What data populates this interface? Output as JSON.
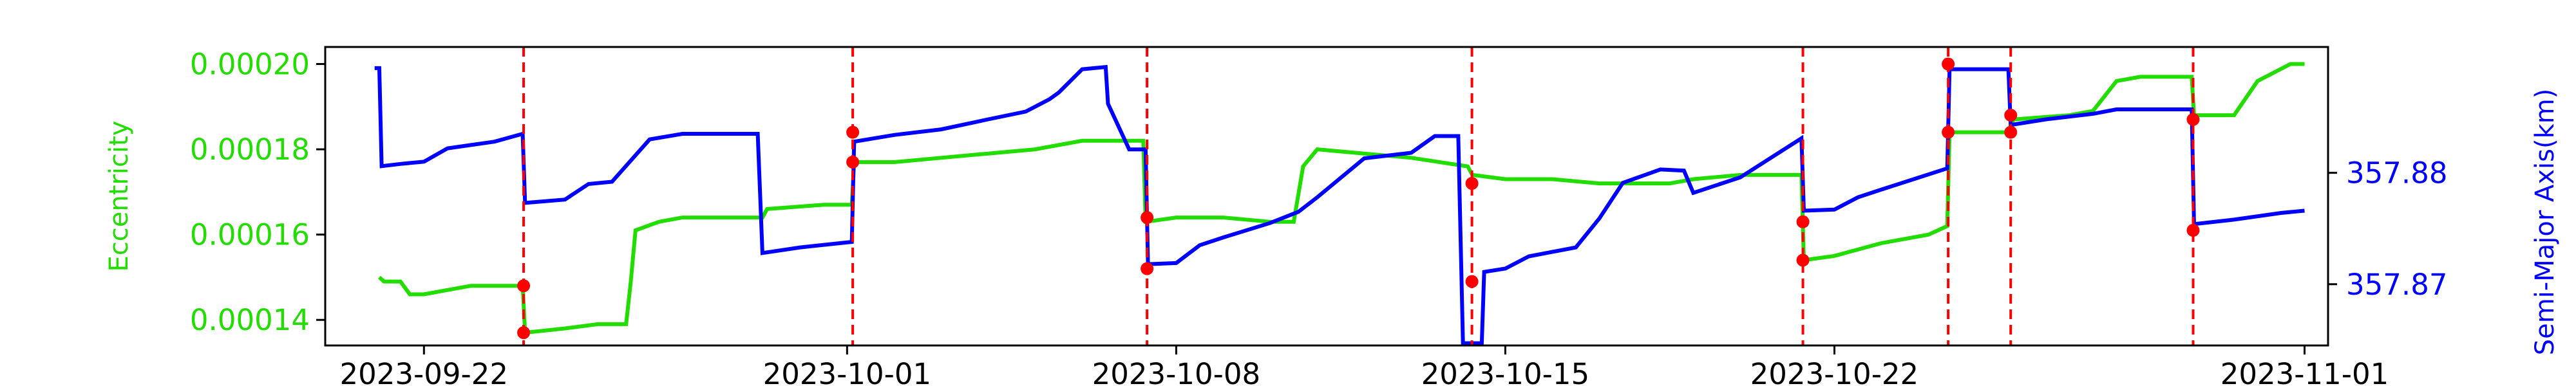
{
  "chart_data": {
    "type": "line",
    "title": "",
    "xlabel": "",
    "ylabel_left": "Eccentricity",
    "ylabel_right": "Semi-Major Axis(km)",
    "colors": {
      "eccentricity": "#22dd00",
      "semi_major_axis": "#0000ff",
      "event_line": "#ff0000",
      "event_marker": "#ff0000",
      "axis": "#000000"
    },
    "x_tick_labels": [
      "2023-09-22",
      "2023-10-01",
      "2023-10-08",
      "2023-10-15",
      "2023-10-22",
      "2023-11-01"
    ],
    "x_tick_days": [
      0,
      9,
      16,
      23,
      30,
      40
    ],
    "xlim_days": [
      -2.1,
      40.5
    ],
    "x_origin_date": "2023-09-22",
    "left_axis": {
      "label": "Eccentricity",
      "ylim": [
        0.000134,
        0.000204
      ],
      "tick_values": [
        0.00014,
        0.00016,
        0.00018,
        0.0002
      ],
      "tick_labels": [
        "0.00014",
        "0.00016",
        "0.00018",
        "0.00020"
      ]
    },
    "right_axis": {
      "label": "Semi-Major Axis(km)",
      "ylim": [
        357.8645,
        357.8913
      ],
      "tick_values": [
        357.87,
        357.88
      ],
      "tick_labels": [
        "357.87",
        "357.88"
      ]
    },
    "event_days": [
      2.12,
      9.12,
      15.38,
      22.29,
      29.33,
      32.42,
      33.75,
      37.63
    ],
    "series": [
      {
        "name": "Eccentricity",
        "axis": "left",
        "color": "#22dd00",
        "points": [
          [
            -0.95,
            0.00015
          ],
          [
            -0.85,
            0.000149
          ],
          [
            -0.7,
            0.000149
          ],
          [
            -0.5,
            0.000149
          ],
          [
            -0.3,
            0.000146
          ],
          [
            0.0,
            0.000146
          ],
          [
            0.5,
            0.000147
          ],
          [
            1.0,
            0.000148
          ],
          [
            1.5,
            0.000148
          ],
          [
            2.1,
            0.000148
          ],
          [
            2.15,
            0.000137
          ],
          [
            3.0,
            0.000138
          ],
          [
            3.7,
            0.000139
          ],
          [
            4.3,
            0.000139
          ],
          [
            4.4,
            0.000149
          ],
          [
            4.5,
            0.000161
          ],
          [
            5.0,
            0.000163
          ],
          [
            5.5,
            0.000164
          ],
          [
            6.5,
            0.000164
          ],
          [
            7.2,
            0.000164
          ],
          [
            7.3,
            0.000166
          ],
          [
            8.5,
            0.000167
          ],
          [
            9.1,
            0.000167
          ],
          [
            9.15,
            0.000177
          ],
          [
            10.0,
            0.000177
          ],
          [
            11.0,
            0.000178
          ],
          [
            12.0,
            0.000179
          ],
          [
            13.0,
            0.00018
          ],
          [
            14.0,
            0.000182
          ],
          [
            15.3,
            0.000182
          ],
          [
            15.35,
            0.000163
          ],
          [
            16.0,
            0.000164
          ],
          [
            17.0,
            0.000164
          ],
          [
            18.0,
            0.000163
          ],
          [
            18.5,
            0.000163
          ],
          [
            18.7,
            0.000176
          ],
          [
            19.0,
            0.00018
          ],
          [
            20.0,
            0.000179
          ],
          [
            21.0,
            0.000178
          ],
          [
            22.2,
            0.000176
          ],
          [
            22.3,
            0.000174
          ],
          [
            23.0,
            0.000173
          ],
          [
            24.0,
            0.000173
          ],
          [
            25.0,
            0.000172
          ],
          [
            26.5,
            0.000172
          ],
          [
            27.0,
            0.000173
          ],
          [
            28.0,
            0.000174
          ],
          [
            29.3,
            0.000174
          ],
          [
            29.35,
            0.000154
          ],
          [
            30.0,
            0.000155
          ],
          [
            31.0,
            0.000158
          ],
          [
            32.0,
            0.00016
          ],
          [
            32.4,
            0.000162
          ],
          [
            32.45,
            0.000184
          ],
          [
            33.0,
            0.000184
          ],
          [
            33.75,
            0.000184
          ],
          [
            33.8,
            0.000187
          ],
          [
            35.0,
            0.000188
          ],
          [
            35.5,
            0.000189
          ],
          [
            36.0,
            0.000196
          ],
          [
            36.5,
            0.000197
          ],
          [
            37.6,
            0.000197
          ],
          [
            37.65,
            0.000188
          ],
          [
            38.5,
            0.000188
          ],
          [
            39.0,
            0.000196
          ],
          [
            39.7,
            0.0002
          ],
          [
            40.0,
            0.0002
          ]
        ]
      },
      {
        "name": "Semi-Major Axis",
        "axis": "right",
        "color": "#0000ff",
        "points": [
          [
            -1.05,
            357.8894
          ],
          [
            -0.95,
            357.8894
          ],
          [
            -0.9,
            357.8806
          ],
          [
            -0.5,
            357.8808
          ],
          [
            0.0,
            357.881
          ],
          [
            0.5,
            357.8822
          ],
          [
            1.0,
            357.8825
          ],
          [
            1.5,
            357.8828
          ],
          [
            2.1,
            357.8835
          ],
          [
            2.15,
            357.8773
          ],
          [
            3.0,
            357.8776
          ],
          [
            3.5,
            357.879
          ],
          [
            4.0,
            357.8792
          ],
          [
            4.8,
            357.883
          ],
          [
            5.5,
            357.8835
          ],
          [
            6.5,
            357.8835
          ],
          [
            7.1,
            357.8835
          ],
          [
            7.2,
            357.8728
          ],
          [
            8.0,
            357.8733
          ],
          [
            9.1,
            357.8738
          ],
          [
            9.15,
            357.8828
          ],
          [
            10.0,
            357.8834
          ],
          [
            11.0,
            357.8839
          ],
          [
            12.0,
            357.8848
          ],
          [
            12.8,
            357.8855
          ],
          [
            13.3,
            357.8866
          ],
          [
            13.5,
            357.8872
          ],
          [
            14.0,
            357.8893
          ],
          [
            14.5,
            357.8895
          ],
          [
            14.55,
            357.8862
          ],
          [
            15.0,
            357.8821
          ],
          [
            15.35,
            357.8821
          ],
          [
            15.4,
            357.8718
          ],
          [
            16.0,
            357.8719
          ],
          [
            16.5,
            357.8735
          ],
          [
            17.0,
            357.8742
          ],
          [
            18.0,
            357.8755
          ],
          [
            18.6,
            357.8765
          ],
          [
            19.0,
            357.8778
          ],
          [
            20.0,
            357.8813
          ],
          [
            21.0,
            357.8818
          ],
          [
            21.5,
            357.8833
          ],
          [
            22.0,
            357.8833
          ],
          [
            22.1,
            357.8647
          ],
          [
            22.5,
            357.8647
          ],
          [
            22.55,
            357.8711
          ],
          [
            23.0,
            357.8714
          ],
          [
            23.5,
            357.8725
          ],
          [
            24.5,
            357.8733
          ],
          [
            25.0,
            357.8759
          ],
          [
            25.5,
            357.8791
          ],
          [
            26.3,
            357.8803
          ],
          [
            26.8,
            357.8802
          ],
          [
            27.0,
            357.8782
          ],
          [
            28.0,
            357.8796
          ],
          [
            29.3,
            357.8831
          ],
          [
            29.35,
            357.8766
          ],
          [
            30.0,
            357.8767
          ],
          [
            30.5,
            357.8778
          ],
          [
            31.0,
            357.8785
          ],
          [
            32.4,
            357.8804
          ],
          [
            32.45,
            357.8893
          ],
          [
            33.7,
            357.8893
          ],
          [
            33.75,
            357.8843
          ],
          [
            34.5,
            357.8848
          ],
          [
            35.5,
            357.8853
          ],
          [
            36.0,
            357.8857
          ],
          [
            37.6,
            357.8857
          ],
          [
            37.65,
            357.8754
          ],
          [
            38.5,
            357.8758
          ],
          [
            39.5,
            357.8764
          ],
          [
            40.0,
            357.8766
          ]
        ]
      }
    ],
    "markers": [
      {
        "day": 2.12,
        "axis": "left",
        "value": 0.000148
      },
      {
        "day": 2.12,
        "axis": "left",
        "value": 0.000137
      },
      {
        "day": 9.12,
        "axis": "left",
        "value": 0.000184
      },
      {
        "day": 9.12,
        "axis": "left",
        "value": 0.000177
      },
      {
        "day": 15.38,
        "axis": "left",
        "value": 0.000164
      },
      {
        "day": 15.38,
        "axis": "left",
        "value": 0.000152
      },
      {
        "day": 22.29,
        "axis": "left",
        "value": 0.000172
      },
      {
        "day": 22.29,
        "axis": "left",
        "value": 0.000149
      },
      {
        "day": 29.33,
        "axis": "left",
        "value": 0.000163
      },
      {
        "day": 29.33,
        "axis": "left",
        "value": 0.000154
      },
      {
        "day": 32.42,
        "axis": "left",
        "value": 0.0002
      },
      {
        "day": 32.42,
        "axis": "left",
        "value": 0.000184
      },
      {
        "day": 33.75,
        "axis": "left",
        "value": 0.000188
      },
      {
        "day": 33.75,
        "axis": "left",
        "value": 0.000184
      },
      {
        "day": 37.63,
        "axis": "left",
        "value": 0.000187
      },
      {
        "day": 37.63,
        "axis": "left",
        "value": 0.000161
      }
    ]
  }
}
